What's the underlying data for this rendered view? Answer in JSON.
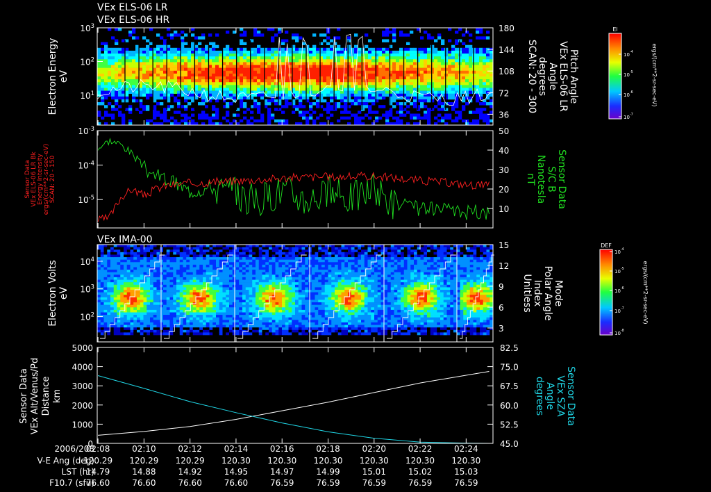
{
  "header": {
    "line1": "VEx ELS-06 LR",
    "line2": "VEx ELS-06 HR"
  },
  "colors": {
    "background": "#000000",
    "axes": "#ffffff",
    "red_series": "#ff2020",
    "green_series": "#20e020",
    "cyan_series": "#20d8e8",
    "white_series": "#ffffff"
  },
  "time_ticks": [
    "02:08",
    "02:10",
    "02:12",
    "02:14",
    "02:16",
    "02:18",
    "02:20",
    "02:22",
    "02:24"
  ],
  "footer": {
    "rows": [
      {
        "label": "2006/208",
        "values": [
          "02:08",
          "02:10",
          "02:12",
          "02:14",
          "02:16",
          "02:18",
          "02:20",
          "02:22",
          "02:24"
        ]
      },
      {
        "label": "V-E Ang (deg)",
        "values": [
          "120.29",
          "120.29",
          "120.29",
          "120.30",
          "120.30",
          "120.30",
          "120.30",
          "120.30",
          "120.30"
        ]
      },
      {
        "label": "LST (hr)",
        "values": [
          "14.79",
          "14.88",
          "14.92",
          "14.95",
          "14.97",
          "14.99",
          "15.01",
          "15.02",
          "15.03"
        ]
      },
      {
        "label": "F10.7 (sfu)",
        "values": [
          "76.60",
          "76.60",
          "76.60",
          "76.60",
          "76.59",
          "76.59",
          "76.59",
          "76.59",
          "76.59"
        ]
      }
    ]
  },
  "chart_data": [
    {
      "id": "els_spectrogram",
      "type": "heatmap",
      "left_axis": {
        "label_lines": [
          "Electron Energy",
          "eV"
        ],
        "scale": "log",
        "ticks": [
          {
            "mantissa": "10",
            "exp": "3",
            "value": 1000
          },
          {
            "mantissa": "10",
            "exp": "2",
            "value": 100
          },
          {
            "mantissa": "10",
            "exp": "1",
            "value": 10
          }
        ]
      },
      "right_axis": {
        "label_lines": [
          "Pitch Angle",
          "VEx ELS-06 LR",
          "Angle",
          "degrees",
          "SCAN: 20 - 300"
        ],
        "range": [
          18,
          180
        ],
        "ticks": [
          "180",
          "144",
          "108",
          "72",
          "36"
        ]
      },
      "colorbar": {
        "title": "El",
        "unit": "ergs/(cm**2-sr-sec-eV)",
        "ticks": [
          {
            "mantissa": "10",
            "exp": "-4"
          },
          {
            "mantissa": "10",
            "exp": "-5"
          },
          {
            "mantissa": "10",
            "exp": "-6"
          },
          {
            "mantissa": "10",
            "exp": "-7"
          }
        ]
      },
      "overlay_series": "pitch angle (white line)"
    },
    {
      "id": "energy_intensity_and_field",
      "type": "line",
      "left_axis": {
        "label_lines": [
          "Sensor Data",
          "VEx ELS-06 LR Bk",
          "Energy Intensity",
          "ergs/(cm**2-sr-sec-eV)",
          "SCAN: 20 - 150"
        ],
        "scale": "log",
        "ylim": [
          1.5e-06,
          0.001
        ],
        "ticks": [
          {
            "mantissa": "10",
            "exp": "-3",
            "value": 0.001
          },
          {
            "mantissa": "10",
            "exp": "-4",
            "value": 0.0001
          },
          {
            "mantissa": "10",
            "exp": "-5",
            "value": 1e-05
          }
        ]
      },
      "right_axis": {
        "label_lines": [
          "Sensor Data",
          "S/C B",
          "Nanotesla",
          "nT"
        ],
        "ylim": [
          0,
          50
        ],
        "ticks": [
          "50",
          "40",
          "30",
          "20",
          "10"
        ]
      },
      "series": [
        {
          "name": "Energy Intensity (red)",
          "axis": "left",
          "x": [
            "02:08",
            "02:08:30",
            "02:09",
            "02:09:30",
            "02:10",
            "02:10:30",
            "02:11",
            "02:12",
            "02:13",
            "02:14",
            "02:15",
            "02:16",
            "02:17",
            "02:18",
            "02:19",
            "02:20",
            "02:21",
            "02:22",
            "02:23",
            "02:24",
            "02:25"
          ],
          "values": [
            2.5e-06,
            3e-06,
            1.2e-05,
            2e-05,
            1.3e-05,
            2e-05,
            2.6e-05,
            3e-05,
            3.2e-05,
            3.5e-05,
            3.8e-05,
            4.2e-05,
            4.5e-05,
            4.6e-05,
            4.6e-05,
            4.8e-05,
            4.2e-05,
            3.6e-05,
            3.2e-05,
            2.7e-05,
            2.6e-05
          ]
        },
        {
          "name": "S/C B (green)",
          "axis": "right",
          "x": [
            "02:08",
            "02:08:30",
            "02:09",
            "02:09:30",
            "02:10",
            "02:10:30",
            "02:11",
            "02:12",
            "02:13",
            "02:14",
            "02:15",
            "02:16",
            "02:17",
            "02:18",
            "02:19",
            "02:20",
            "02:21",
            "02:22",
            "02:23",
            "02:24",
            "02:25"
          ],
          "values": [
            41,
            45,
            43,
            38,
            31,
            27,
            25,
            19,
            21,
            17,
            14,
            20,
            15,
            18,
            16,
            20,
            12,
            10,
            9,
            8,
            8
          ]
        }
      ]
    },
    {
      "id": "ima_spectrogram",
      "type": "heatmap",
      "title": "VEx IMA-00",
      "left_axis": {
        "label_lines": [
          "Electron Volts",
          "eV"
        ],
        "scale": "log",
        "ticks": [
          {
            "mantissa": "10",
            "exp": "4",
            "value": 10000
          },
          {
            "mantissa": "10",
            "exp": "3",
            "value": 1000
          },
          {
            "mantissa": "10",
            "exp": "2",
            "value": 100
          }
        ]
      },
      "right_axis": {
        "label_lines": [
          "Mode",
          "Polar Angle",
          "Index",
          "Unitless"
        ],
        "range": [
          1,
          15
        ],
        "ticks": [
          "15",
          "12",
          "9",
          "6",
          "3"
        ]
      },
      "colorbar": {
        "title": "DEF",
        "unit": "ergs/(cm**2-sr-sec-eV)",
        "ticks": [
          {
            "mantissa": "10",
            "exp": "-4"
          },
          {
            "mantissa": "10",
            "exp": "-5"
          },
          {
            "mantissa": "10",
            "exp": "-6"
          },
          {
            "mantissa": "10",
            "exp": "-7"
          },
          {
            "mantissa": "10",
            "exp": "-8"
          }
        ]
      },
      "overlay_series": "polar angle index (white staircase)"
    },
    {
      "id": "distance_and_sza",
      "type": "line",
      "left_axis": {
        "label_lines": [
          "Sensor Data",
          "VEx Alt/Venus/Pd",
          "Distance",
          "km"
        ],
        "ylim": [
          0,
          5000
        ],
        "ticks": [
          "5000",
          "4000",
          "3000",
          "2000",
          "1000",
          "0"
        ]
      },
      "right_axis": {
        "label_lines": [
          "Sensor Data",
          "VEx SZA",
          "Angle",
          "degrees"
        ],
        "ylim": [
          45.0,
          82.5
        ],
        "ticks": [
          "82.5",
          "75.0",
          "67.5",
          "60.0",
          "52.5",
          "45.0"
        ]
      },
      "series": [
        {
          "name": "VEx Alt/Venus/Pd (white)",
          "axis": "left",
          "x": [
            "02:08",
            "02:10",
            "02:12",
            "02:14",
            "02:16",
            "02:18",
            "02:20",
            "02:22",
            "02:24",
            "02:25"
          ],
          "values": [
            420,
            620,
            880,
            1250,
            1700,
            2150,
            2650,
            3150,
            3550,
            3750
          ]
        },
        {
          "name": "VEx SZA (cyan)",
          "axis": "right",
          "x": [
            "02:08",
            "02:10",
            "02:12",
            "02:14",
            "02:16",
            "02:18",
            "02:20",
            "02:22",
            "02:24",
            "02:25"
          ],
          "values": [
            71.5,
            66.5,
            61.3,
            57.0,
            53.0,
            49.5,
            47.0,
            45.5,
            45.1,
            45.0
          ]
        }
      ]
    }
  ]
}
